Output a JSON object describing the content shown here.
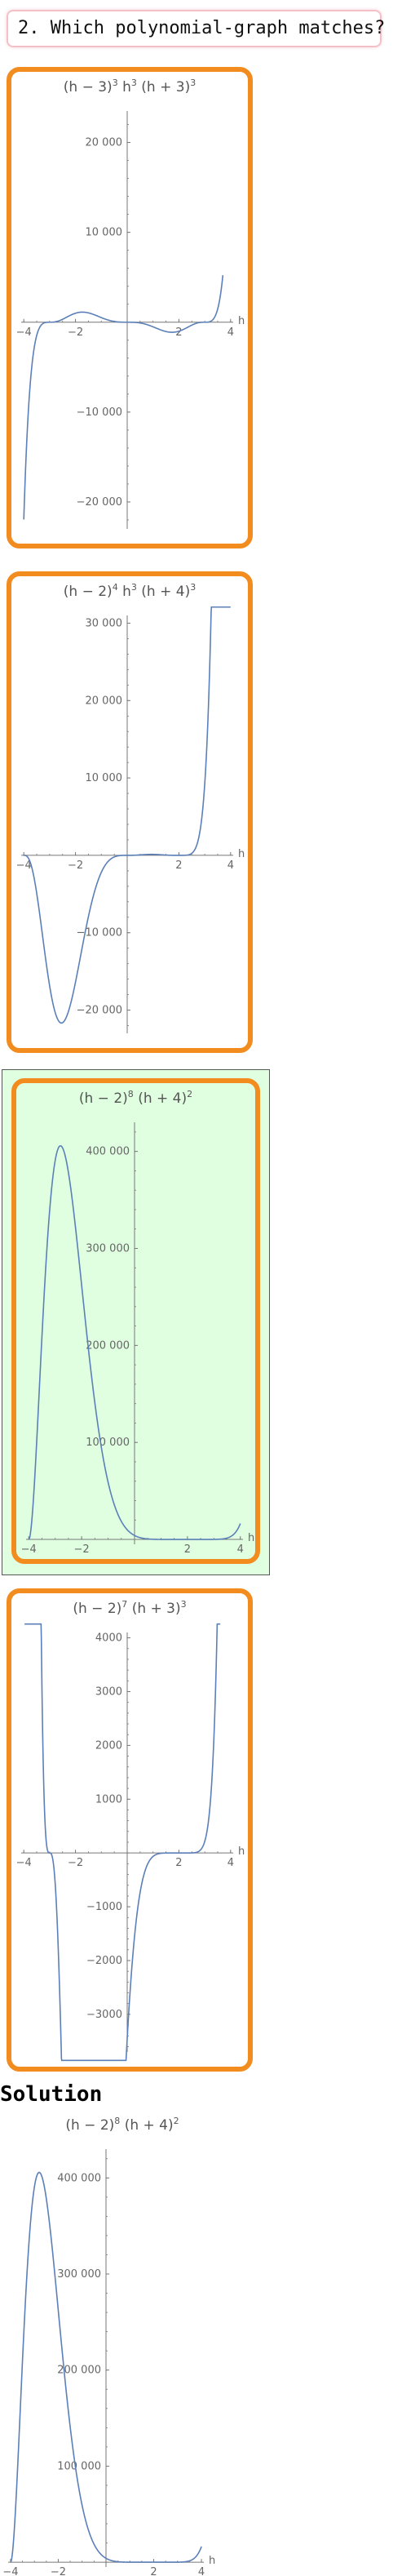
{
  "question": "2. Which polynomial-graph matches?",
  "solution_heading": "Solution",
  "colors": {
    "option_border": "#f28c1e",
    "correct_bg": "#dfffe0",
    "curve": "#5b7fb8",
    "axis": "#777777"
  },
  "chart_data": [
    {
      "id": "option-1",
      "type": "line",
      "title": "(h − 3)^3 h^3 (h + 3)^3",
      "title_parts": [
        [
          "(h − 3)",
          ""
        ],
        [
          "3",
          "sup"
        ],
        [
          " h",
          ""
        ],
        [
          "3",
          "sup"
        ],
        [
          " (h + 3)",
          ""
        ],
        [
          "3",
          "sup"
        ]
      ],
      "xlabel": "h",
      "xlim": [
        -4.1,
        4.1
      ],
      "ylim": [
        -23000,
        23500
      ],
      "xticks": [
        {
          "v": -4,
          "l": "−4"
        },
        {
          "v": -2,
          "l": "−2"
        },
        {
          "v": 2,
          "l": "2"
        },
        {
          "v": 4,
          "l": "4"
        }
      ],
      "yticks": [
        {
          "v": 20000,
          "l": "20 000"
        },
        {
          "v": 10000,
          "l": "10 000"
        },
        {
          "v": -10000,
          "l": "−10 000"
        },
        {
          "v": -20000,
          "l": "−20 000"
        }
      ],
      "curve": {
        "roots": [
          [
            3,
            3
          ],
          [
            0,
            3
          ],
          [
            -3,
            3
          ]
        ],
        "domain": [
          -4,
          3.7
        ]
      }
    },
    {
      "id": "option-2",
      "type": "line",
      "title": "(h − 2)^4 h^3 (h + 4)^3",
      "title_parts": [
        [
          "(h − 2)",
          ""
        ],
        [
          "4",
          "sup"
        ],
        [
          " h",
          ""
        ],
        [
          "3",
          "sup"
        ],
        [
          " (h + 4)",
          ""
        ],
        [
          "3",
          "sup"
        ]
      ],
      "xlabel": "h",
      "xlim": [
        -4.1,
        4.1
      ],
      "ylim": [
        -23000,
        31000
      ],
      "xticks": [
        {
          "v": -4,
          "l": "−4"
        },
        {
          "v": -2,
          "l": "−2"
        },
        {
          "v": 2,
          "l": "2"
        },
        {
          "v": 4,
          "l": "4"
        }
      ],
      "yticks": [
        {
          "v": 30000,
          "l": "30 000"
        },
        {
          "v": 20000,
          "l": "20 000"
        },
        {
          "v": 10000,
          "l": "10 000"
        },
        {
          "v": -10000,
          "l": "−10 000"
        },
        {
          "v": -20000,
          "l": "−20 000"
        }
      ],
      "curve": {
        "roots": [
          [
            2,
            4
          ],
          [
            0,
            3
          ],
          [
            -4,
            3
          ]
        ],
        "domain": [
          -4,
          4
        ]
      }
    },
    {
      "id": "option-3",
      "type": "line",
      "correct": true,
      "title": "(h − 2)^8 (h + 4)^2",
      "title_parts": [
        [
          "(h − 2)",
          ""
        ],
        [
          "8",
          "sup"
        ],
        [
          " (h + 4)",
          ""
        ],
        [
          "2",
          "sup"
        ]
      ],
      "xlabel": "h",
      "xlim": [
        -4.1,
        4.1
      ],
      "ylim": [
        -5000,
        430000
      ],
      "xticks": [
        {
          "v": -4,
          "l": "−4"
        },
        {
          "v": -2,
          "l": "−2"
        },
        {
          "v": 2,
          "l": "2"
        },
        {
          "v": 4,
          "l": "4"
        }
      ],
      "yticks": [
        {
          "v": 400000,
          "l": "400 000"
        },
        {
          "v": 300000,
          "l": "300 000"
        },
        {
          "v": 200000,
          "l": "200 000"
        },
        {
          "v": 100000,
          "l": "100 000"
        }
      ],
      "curve": {
        "roots": [
          [
            2,
            8
          ],
          [
            -4,
            2
          ]
        ],
        "domain": [
          -4,
          4
        ]
      }
    },
    {
      "id": "option-4",
      "type": "line",
      "title": "(h − 2)^7 (h + 3)^3",
      "title_parts": [
        [
          "(h − 2)",
          ""
        ],
        [
          "7",
          "sup"
        ],
        [
          " (h + 3)",
          ""
        ],
        [
          "3",
          "sup"
        ]
      ],
      "xlabel": "h",
      "xlim": [
        -4.1,
        4.1
      ],
      "ylim": [
        -3700,
        4100
      ],
      "xticks": [
        {
          "v": -4,
          "l": "−4"
        },
        {
          "v": -2,
          "l": "−2"
        },
        {
          "v": 2,
          "l": "2"
        },
        {
          "v": 4,
          "l": "4"
        }
      ],
      "yticks": [
        {
          "v": 4000,
          "l": "4000"
        },
        {
          "v": 3000,
          "l": "3000"
        },
        {
          "v": 2000,
          "l": "2000"
        },
        {
          "v": 1000,
          "l": "1000"
        },
        {
          "v": -1000,
          "l": "−1000"
        },
        {
          "v": -2000,
          "l": "−2000"
        },
        {
          "v": -3000,
          "l": "−3000"
        }
      ],
      "curve": {
        "roots": [
          [
            2,
            7
          ],
          [
            -3,
            3
          ]
        ],
        "domain": [
          -3.97,
          3.6
        ]
      }
    },
    {
      "id": "solution",
      "type": "line",
      "title": "(h − 2)^8 (h + 4)^2",
      "title_parts": [
        [
          "(h − 2)",
          ""
        ],
        [
          "8",
          "sup"
        ],
        [
          " (h + 4)",
          ""
        ],
        [
          "2",
          "sup"
        ]
      ],
      "xlabel": "h",
      "xlim": [
        -4.1,
        4.1
      ],
      "ylim": [
        -5000,
        430000
      ],
      "xticks": [
        {
          "v": -4,
          "l": "−4"
        },
        {
          "v": -2,
          "l": "−2"
        },
        {
          "v": 2,
          "l": "2"
        },
        {
          "v": 4,
          "l": "4"
        }
      ],
      "yticks": [
        {
          "v": 400000,
          "l": "400 000"
        },
        {
          "v": 300000,
          "l": "300 000"
        },
        {
          "v": 200000,
          "l": "200 000"
        },
        {
          "v": 100000,
          "l": "100 000"
        }
      ],
      "curve": {
        "roots": [
          [
            2,
            8
          ],
          [
            -4,
            2
          ]
        ],
        "domain": [
          -4,
          4
        ]
      }
    }
  ]
}
